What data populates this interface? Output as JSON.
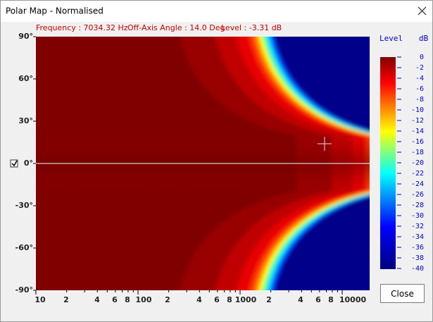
{
  "window": {
    "title": "Polar Map - Normalised",
    "close_button": "Close"
  },
  "info": {
    "frequency": "Frequency : 7034.32 Hz",
    "angle": "Off-Axis Angle : 14.0 Deg",
    "level": "Level : -3.31 dB"
  },
  "y_axis": {
    "labels": [
      "90°",
      "60°",
      "30°",
      "0°",
      "-30°",
      "-60°",
      "-90°"
    ]
  },
  "x_axis": {
    "labels": [
      "10",
      "2",
      "4",
      "6",
      "8",
      "100",
      "2",
      "4",
      "6",
      "8",
      "1000",
      "2",
      "4",
      "6",
      "8",
      "10000"
    ]
  },
  "colorbar": {
    "title": "Level",
    "unit": "dB",
    "labels": [
      0,
      -2,
      -4,
      -6,
      -8,
      -10,
      -12,
      -14,
      -16,
      -18,
      -20,
      -22,
      -24,
      -26,
      -28,
      -30,
      -32,
      -34,
      -36,
      -38,
      -40
    ]
  }
}
